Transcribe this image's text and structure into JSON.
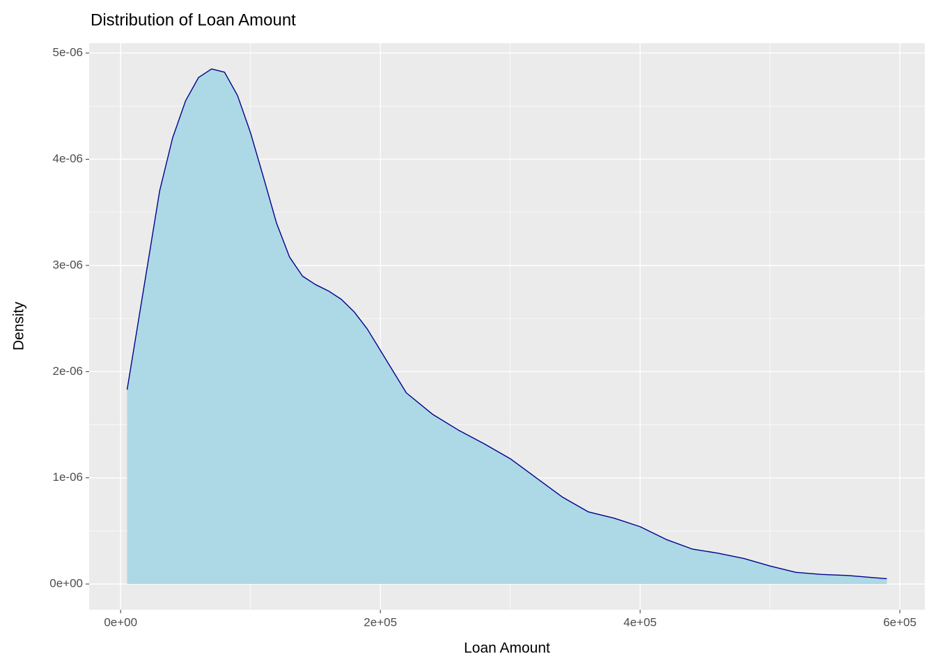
{
  "chart_data": {
    "type": "density",
    "title": "Distribution of Loan Amount",
    "x_label": "Loan Amount",
    "y_label": "Density",
    "x": [
      5000,
      20000,
      30000,
      40000,
      50000,
      60000,
      70000,
      80000,
      90000,
      100000,
      110000,
      120000,
      130000,
      140000,
      150000,
      160000,
      170000,
      180000,
      190000,
      200000,
      220000,
      240000,
      260000,
      280000,
      300000,
      320000,
      340000,
      360000,
      380000,
      400000,
      420000,
      440000,
      460000,
      480000,
      500000,
      520000,
      540000,
      560000,
      580000,
      590000
    ],
    "values": [
      1.83e-06,
      2.95e-06,
      3.7e-06,
      4.2e-06,
      4.55e-06,
      4.77e-06,
      4.85e-06,
      4.82e-06,
      4.6e-06,
      4.25e-06,
      3.83e-06,
      3.4e-06,
      3.08e-06,
      2.9e-06,
      2.82e-06,
      2.76e-06,
      2.68e-06,
      2.56e-06,
      2.4e-06,
      2.2e-06,
      1.8e-06,
      1.6e-06,
      1.45e-06,
      1.32e-06,
      1.18e-06,
      1e-06,
      8.2e-07,
      6.8e-07,
      6.2e-07,
      5.4e-07,
      4.2e-07,
      3.3e-07,
      2.9e-07,
      2.4e-07,
      1.7e-07,
      1.1e-07,
      9e-08,
      8e-08,
      6e-08,
      5e-08
    ],
    "fill": "#add8e6",
    "color": "#00008b",
    "xlim": [
      -24250,
      619250
    ],
    "xticks": [
      {
        "value": 0,
        "label": "0e+00"
      },
      {
        "value": 200000,
        "label": "2e+05"
      },
      {
        "value": 400000,
        "label": "4e+05"
      },
      {
        "value": 600000,
        "label": "6e+05"
      }
    ],
    "ylim": [
      -2.425e-07,
      5.0925e-06
    ],
    "yticks": [
      {
        "value": 0,
        "label": "0e+00"
      },
      {
        "value": 1e-06,
        "label": "1e-06"
      },
      {
        "value": 2e-06,
        "label": "2e-06"
      },
      {
        "value": 3e-06,
        "label": "3e-06"
      },
      {
        "value": 4e-06,
        "label": "4e-06"
      },
      {
        "value": 5e-06,
        "label": "5e-06"
      }
    ],
    "grid": true
  }
}
